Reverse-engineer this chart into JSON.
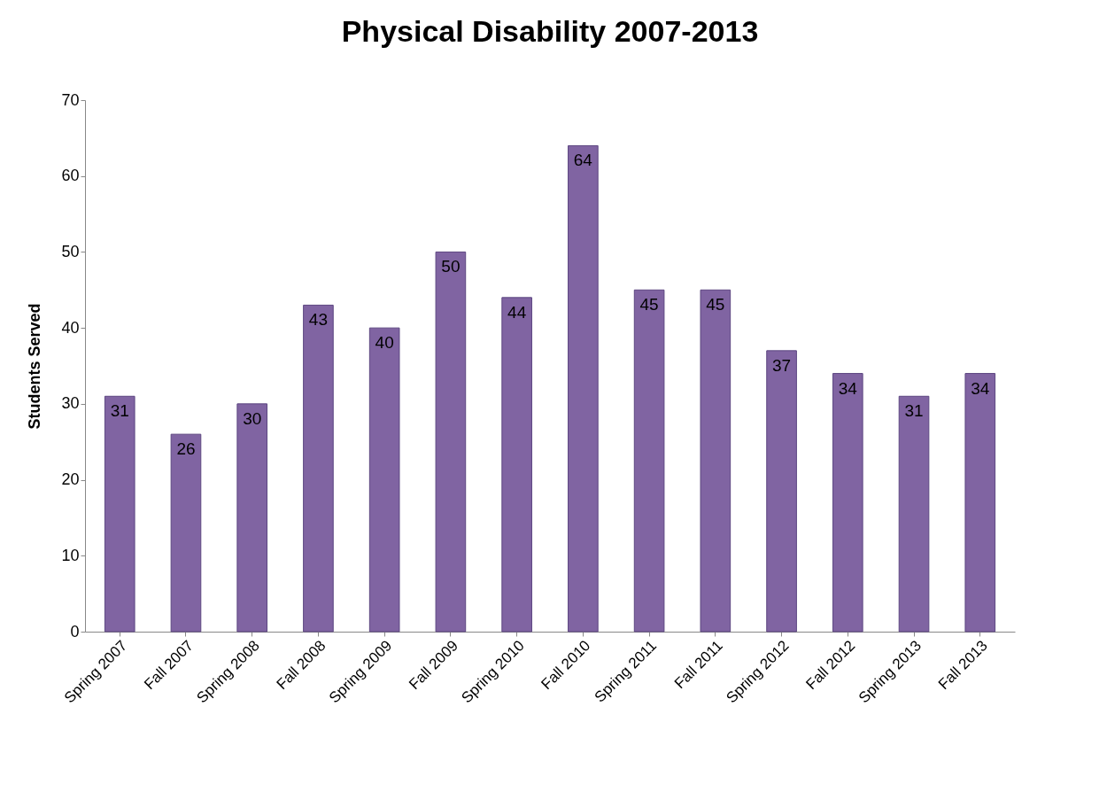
{
  "chart_data": {
    "type": "bar",
    "title": "Physical Disability 2007-2013",
    "ylabel": "Students Served",
    "categories": [
      "Spring 2007",
      "Fall 2007",
      "Spring 2008",
      "Fall 2008",
      "Spring 2009",
      "Fall 2009",
      "Spring 2010",
      "Fall 2010",
      "Spring 2011",
      "Fall 2011",
      "Spring 2012",
      "Fall 2012",
      "Spring 2013",
      "Fall 2013"
    ],
    "values": [
      31,
      26,
      30,
      43,
      40,
      50,
      44,
      64,
      45,
      45,
      37,
      34,
      31,
      34
    ],
    "color": "#8064a2",
    "ylim": [
      0,
      70
    ],
    "yticks": [
      0,
      10,
      20,
      30,
      40,
      50,
      60,
      70
    ],
    "grid": false,
    "data_labels": true
  }
}
